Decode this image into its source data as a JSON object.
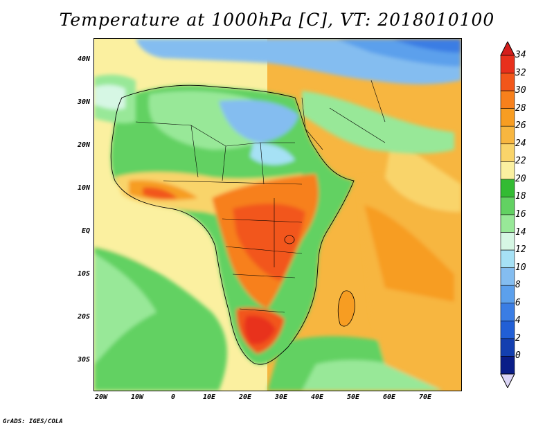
{
  "title": "Temperature at 1000hPa [C], VT: 2018010100",
  "credit": "GrADS: IGES/COLA",
  "map": {
    "region": "Africa and surrounding oceans",
    "lon_range": [
      -25,
      80
    ],
    "lat_range": [
      -37,
      46
    ],
    "x_tick_labels": [
      "20W",
      "10W",
      "0",
      "10E",
      "20E",
      "30E",
      "40E",
      "50E",
      "60E",
      "70E"
    ],
    "y_tick_labels": [
      "40N",
      "30N",
      "20N",
      "10N",
      "EQ",
      "10S",
      "20S",
      "30S"
    ]
  },
  "colorbar": {
    "labels": [
      "34",
      "32",
      "30",
      "28",
      "26",
      "24",
      "22",
      "20",
      "18",
      "16",
      "14",
      "12",
      "10",
      "8",
      "6",
      "4",
      "2",
      "0"
    ],
    "colors": [
      "#e8301c",
      "#f2561a",
      "#f7801c",
      "#f79d22",
      "#f7b640",
      "#f9d46a",
      "#fbf0a0",
      "#33bb33",
      "#62d162",
      "#98e898",
      "#d6f7e4",
      "#a6e1f5",
      "#84bdf0",
      "#5ca0ec",
      "#3a7de4",
      "#215fd6",
      "#133fb0",
      "#0a1d88"
    ],
    "over_color": "#d41e1c",
    "under_color": "#dcd6f7"
  }
}
